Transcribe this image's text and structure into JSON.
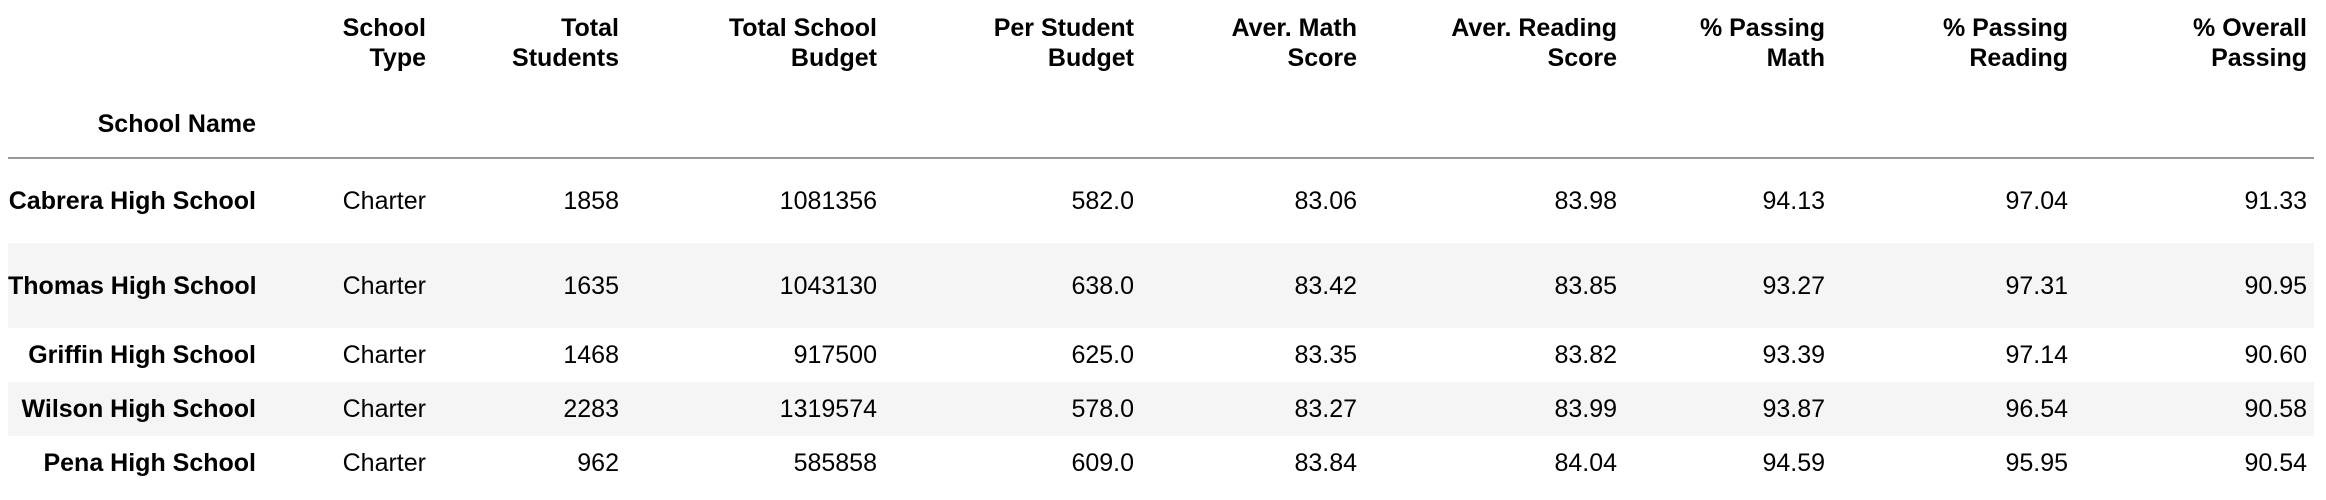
{
  "table": {
    "index_name": "School Name",
    "columns": [
      "School\nType",
      "Total\nStudents",
      "Total School\nBudget",
      "Per Student\nBudget",
      "Aver. Math\nScore",
      "Aver. Reading\nScore",
      "% Passing\nMath",
      "% Passing\nReading",
      "% Overall\nPassing"
    ],
    "rows": [
      {
        "school_name": "Cabrera High School",
        "values": [
          "Charter",
          "1858",
          "1081356",
          "582.0",
          "83.06",
          "83.98",
          "94.13",
          "97.04",
          "91.33"
        ]
      },
      {
        "school_name": "Thomas High School",
        "values": [
          "Charter",
          "1635",
          "1043130",
          "638.0",
          "83.42",
          "83.85",
          "93.27",
          "97.31",
          "90.95"
        ]
      },
      {
        "school_name": "Griffin High School",
        "values": [
          "Charter",
          "1468",
          "917500",
          "625.0",
          "83.35",
          "83.82",
          "93.39",
          "97.14",
          "90.60"
        ]
      },
      {
        "school_name": "Wilson High School",
        "values": [
          "Charter",
          "2283",
          "1319574",
          "578.0",
          "83.27",
          "83.99",
          "93.87",
          "96.54",
          "90.58"
        ]
      },
      {
        "school_name": "Pena High School",
        "values": [
          "Charter",
          "962",
          "585858",
          "609.0",
          "83.84",
          "84.04",
          "94.59",
          "95.95",
          "90.54"
        ]
      }
    ]
  }
}
